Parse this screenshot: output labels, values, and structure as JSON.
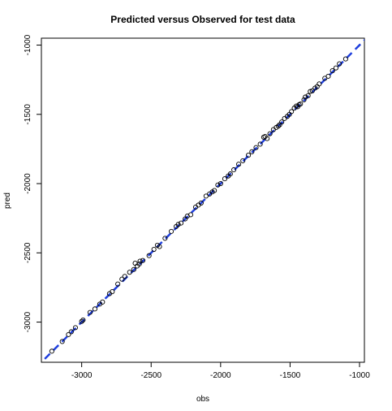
{
  "chart_data": {
    "type": "scatter",
    "title": "Predicted versus Observed for test data",
    "xlabel": "obs",
    "ylabel": "pred",
    "xlim": [
      -3290,
      -965
    ],
    "ylim": [
      -3290,
      -950
    ],
    "xticks": [
      -3000,
      -2500,
      -2000,
      -1500,
      -1000
    ],
    "yticks": [
      -3000,
      -2500,
      -2000,
      -1500,
      -1000
    ],
    "reference_line": {
      "slope": 1,
      "intercept": 0,
      "color": "#1f3fdd",
      "style": "dashed"
    },
    "point_style": {
      "shape": "open-circle",
      "color": "#000000"
    },
    "points": {
      "x": [
        -3215,
        -3140,
        -3095,
        -3075,
        -3045,
        -3000,
        -2990,
        -2940,
        -2905,
        -2870,
        -2850,
        -2800,
        -2780,
        -2740,
        -2710,
        -2690,
        -2655,
        -2625,
        -2615,
        -2600,
        -2585,
        -2580,
        -2560,
        -2515,
        -2480,
        -2455,
        -2440,
        -2400,
        -2355,
        -2320,
        -2305,
        -2285,
        -2255,
        -2240,
        -2215,
        -2180,
        -2160,
        -2140,
        -2105,
        -2080,
        -2060,
        -2045,
        -2020,
        -2000,
        -1970,
        -1945,
        -1930,
        -1905,
        -1870,
        -1840,
        -1800,
        -1775,
        -1745,
        -1715,
        -1690,
        -1680,
        -1665,
        -1645,
        -1620,
        -1600,
        -1585,
        -1575,
        -1560,
        -1540,
        -1520,
        -1505,
        -1490,
        -1470,
        -1455,
        -1445,
        -1435,
        -1425,
        -1400,
        -1390,
        -1370,
        -1355,
        -1340,
        -1320,
        -1305,
        -1290,
        -1250,
        -1225,
        -1195,
        -1170,
        -1145,
        -1100
      ],
      "y": [
        -3210,
        -3140,
        -3090,
        -3070,
        -3040,
        -2995,
        -2985,
        -2930,
        -2905,
        -2870,
        -2855,
        -2795,
        -2780,
        -2725,
        -2690,
        -2670,
        -2640,
        -2620,
        -2575,
        -2595,
        -2580,
        -2560,
        -2555,
        -2520,
        -2475,
        -2445,
        -2455,
        -2395,
        -2345,
        -2310,
        -2295,
        -2285,
        -2255,
        -2235,
        -2225,
        -2170,
        -2155,
        -2140,
        -2090,
        -2075,
        -2060,
        -2050,
        -2010,
        -2000,
        -1965,
        -1945,
        -1930,
        -1900,
        -1860,
        -1835,
        -1795,
        -1770,
        -1740,
        -1715,
        -1665,
        -1660,
        -1675,
        -1640,
        -1610,
        -1595,
        -1585,
        -1575,
        -1555,
        -1530,
        -1515,
        -1500,
        -1480,
        -1455,
        -1440,
        -1445,
        -1430,
        -1425,
        -1395,
        -1375,
        -1365,
        -1335,
        -1330,
        -1310,
        -1300,
        -1280,
        -1240,
        -1225,
        -1185,
        -1165,
        -1135,
        -1100
      ]
    }
  }
}
